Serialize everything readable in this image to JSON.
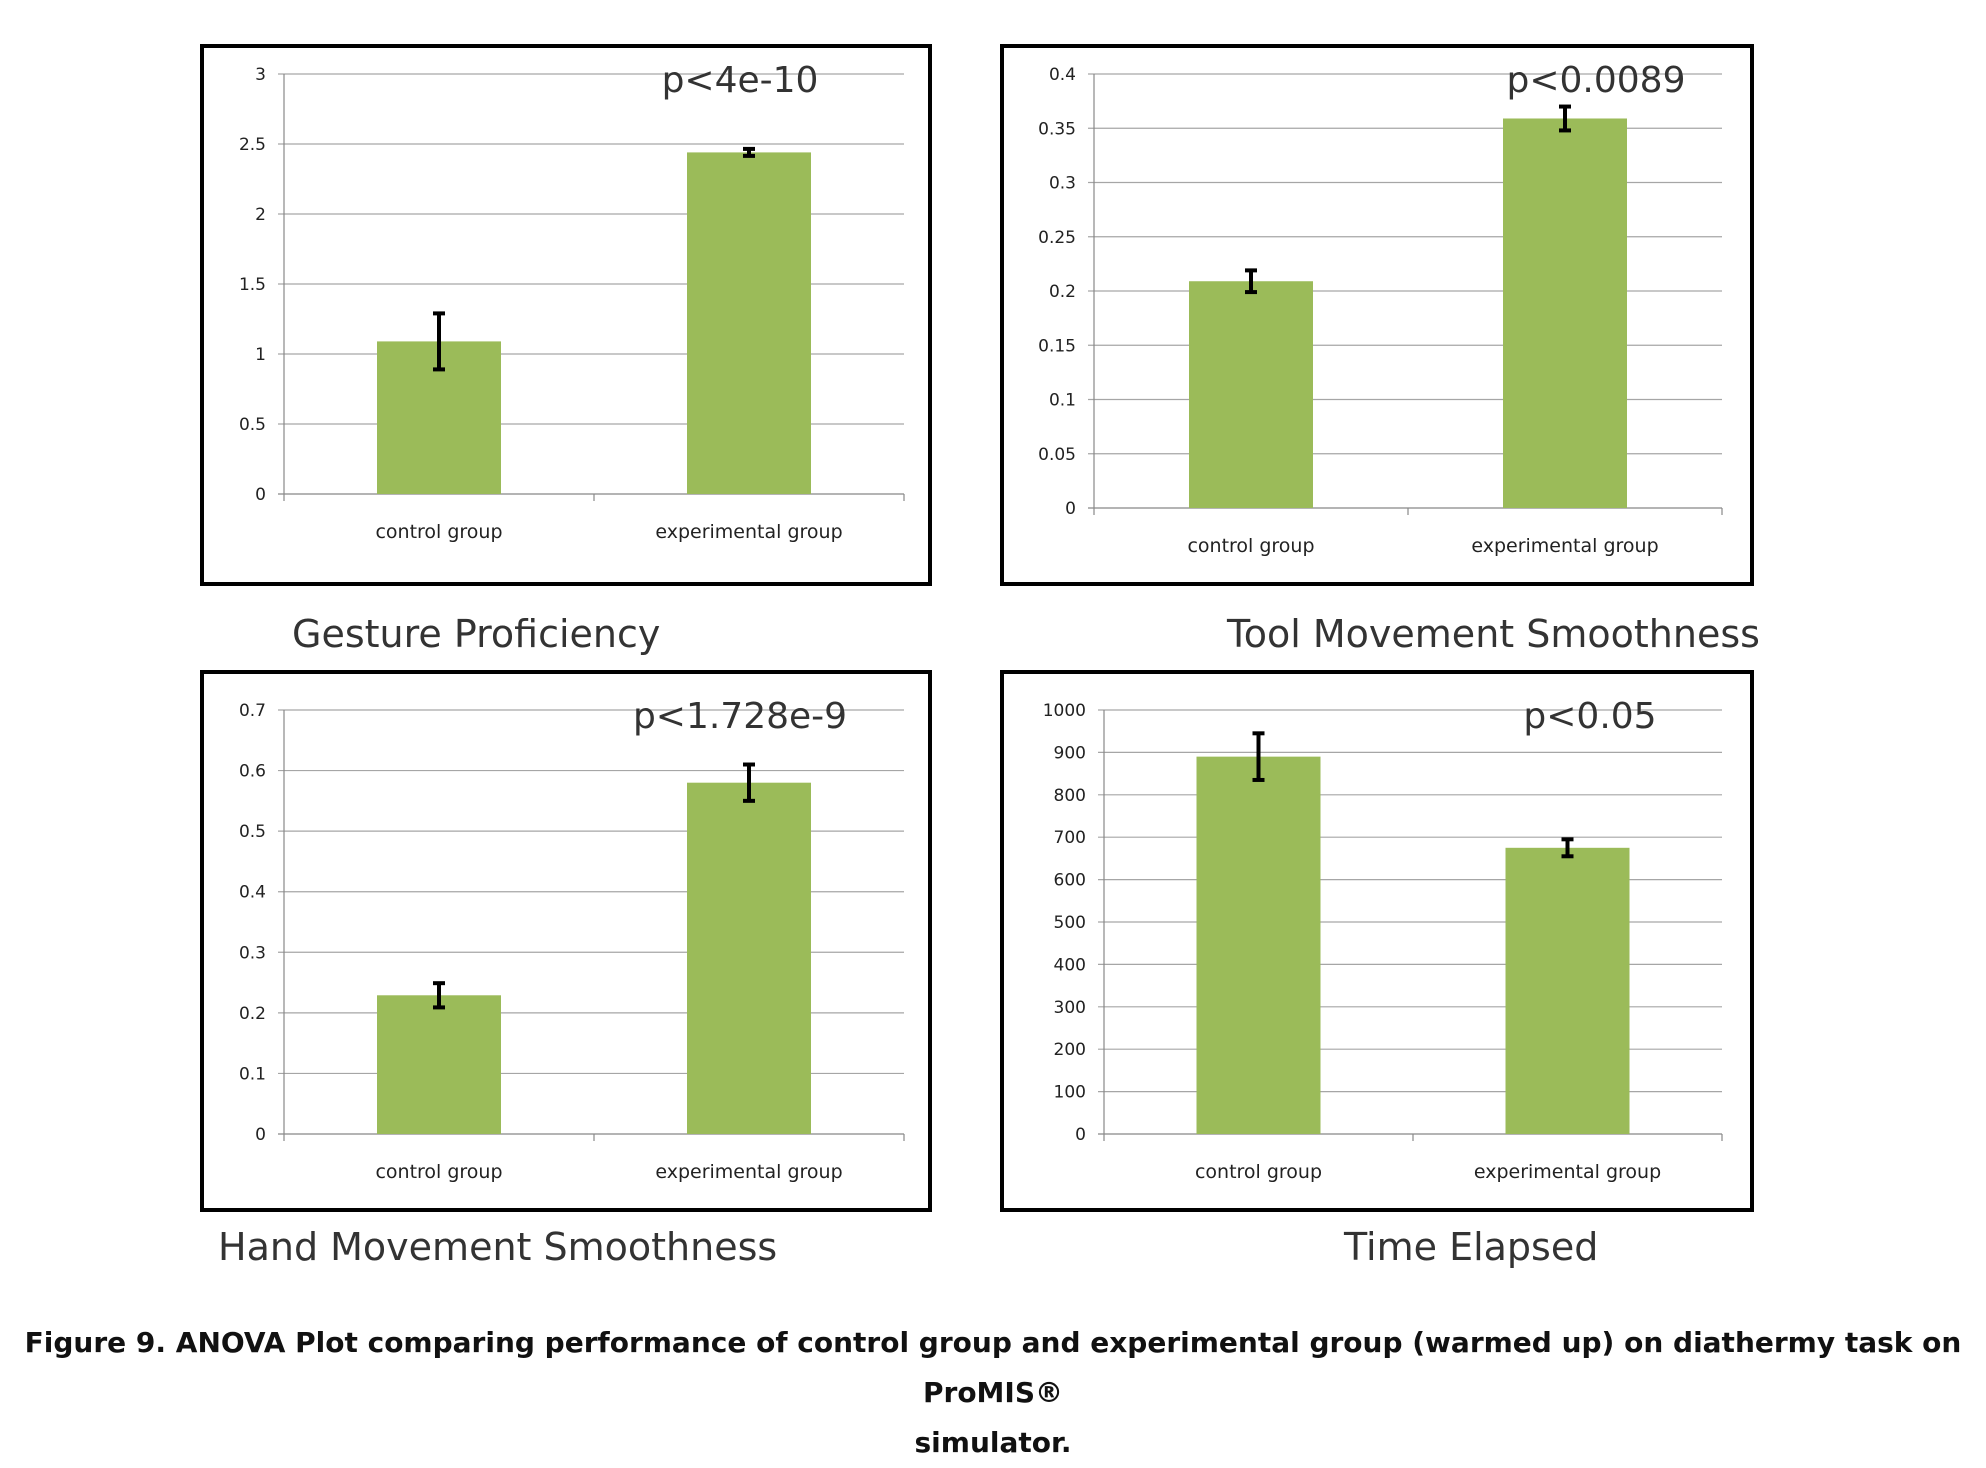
{
  "chart_data": [
    {
      "type": "bar",
      "title": "Gesture Proficiency",
      "annotation": "p<4e-10",
      "categories": [
        "control group",
        "experimental group"
      ],
      "values": [
        1.09,
        2.44
      ],
      "error": [
        0.2,
        0.025
      ],
      "ylim": [
        0,
        3
      ],
      "yticks": [
        0,
        0.5,
        1,
        1.5,
        2,
        2.5,
        3
      ],
      "ytick_labels": [
        "0",
        "0.5",
        "1",
        "1.5",
        "2",
        "2.5",
        "3"
      ],
      "bar_color": "#9bbb59",
      "grid": true
    },
    {
      "type": "bar",
      "title": "Tool Movement Smoothness",
      "annotation": "p<0.0089",
      "categories": [
        "control group",
        "experimental group"
      ],
      "values": [
        0.209,
        0.359
      ],
      "error": [
        0.01,
        0.011
      ],
      "ylim": [
        0,
        0.4
      ],
      "yticks": [
        0,
        0.05,
        0.1,
        0.15,
        0.2,
        0.25,
        0.3,
        0.35,
        0.4
      ],
      "ytick_labels": [
        "0",
        "0.05",
        "0.1",
        "0.15",
        "0.2",
        "0.25",
        "0.3",
        "0.35",
        "0.4"
      ],
      "bar_color": "#9bbb59",
      "grid": true
    },
    {
      "type": "bar",
      "title": "Hand Movement Smoothness",
      "annotation": "p<1.728e-9",
      "categories": [
        "control group",
        "experimental group"
      ],
      "values": [
        0.229,
        0.58
      ],
      "error": [
        0.02,
        0.03
      ],
      "ylim": [
        0,
        0.7
      ],
      "yticks": [
        0,
        0.1,
        0.2,
        0.3,
        0.4,
        0.5,
        0.6,
        0.7
      ],
      "ytick_labels": [
        "0",
        "0.1",
        "0.2",
        "0.3",
        "0.4",
        "0.5",
        "0.6",
        "0.7"
      ],
      "bar_color": "#9bbb59",
      "grid": true
    },
    {
      "type": "bar",
      "title": "Time Elapsed",
      "annotation": "p<0.05",
      "categories": [
        "control group",
        "experimental group"
      ],
      "values": [
        890,
        675
      ],
      "error": [
        55,
        20
      ],
      "ylim": [
        0,
        1000
      ],
      "yticks": [
        0,
        100,
        200,
        300,
        400,
        500,
        600,
        700,
        800,
        900,
        1000
      ],
      "ytick_labels": [
        "0",
        "100",
        "200",
        "300",
        "400",
        "500",
        "600",
        "700",
        "800",
        "900",
        "1000"
      ],
      "bar_color": "#9bbb59",
      "grid": true
    }
  ],
  "caption": {
    "line1": "Figure 9. ANOVA Plot comparing performance of control group and experimental group (warmed up) on diathermy task on ProMIS®",
    "line2": "simulator."
  }
}
